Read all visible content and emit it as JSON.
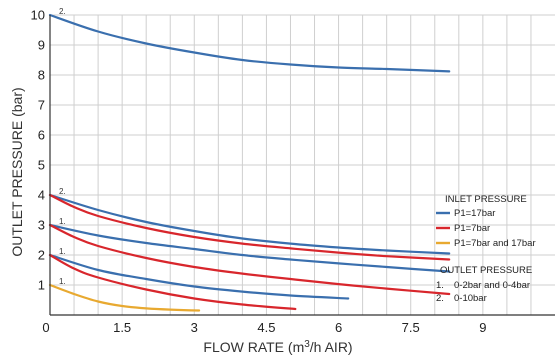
{
  "chart_data": {
    "type": "line",
    "xlabel": "FLOW RATE (m3/h AIR)",
    "xlabel_main": "FLOW RATE (m",
    "xlabel_sup": "3",
    "xlabel_end": "/h AIR)",
    "ylabel": "OUTLET PRESSURE (bar)",
    "xlim": [
      0,
      10.5
    ],
    "ylim": [
      0,
      10
    ],
    "x_ticks": [
      {
        "value": 1.5,
        "label": "1.5"
      },
      {
        "value": 3,
        "label": "3"
      },
      {
        "value": 4.5,
        "label": "4.5"
      },
      {
        "value": 6,
        "label": "6"
      },
      {
        "value": 7.5,
        "label": "7.5"
      },
      {
        "value": 9,
        "label": "9"
      }
    ],
    "x_origin_label": "0",
    "y_ticks": [
      {
        "value": 1,
        "label": "1"
      },
      {
        "value": 2,
        "label": "2"
      },
      {
        "value": 3,
        "label": "3"
      },
      {
        "value": 4,
        "label": "4"
      },
      {
        "value": 5,
        "label": "5"
      },
      {
        "value": 6,
        "label": "6"
      },
      {
        "value": 7,
        "label": "7"
      },
      {
        "value": 8,
        "label": "8"
      },
      {
        "value": 9,
        "label": "9"
      },
      {
        "value": 10,
        "label": "10"
      }
    ],
    "grid": true,
    "legend": {
      "placement": "right",
      "inlet_title": "INLET PRESSURE",
      "inlet_items": [
        {
          "label": "P1=17bar",
          "color": "#3a6fae"
        },
        {
          "label": "P1=7bar",
          "color": "#d8262c"
        },
        {
          "label": "P1=7bar and 17bar",
          "color": "#e8a930"
        }
      ],
      "outlet_title": "OUTLET PRESSURE",
      "outlet_items": [
        {
          "num": "1.",
          "label": "0-2bar and 0-4bar"
        },
        {
          "num": "2.",
          "label": "0-10bar"
        }
      ]
    },
    "series": [
      {
        "group": "P1=17bar",
        "color": "#3a6fae",
        "curve_label": "2.",
        "x": [
          0,
          1,
          2,
          3,
          4,
          5,
          6,
          7,
          8.3
        ],
        "y": [
          10.0,
          9.45,
          9.05,
          8.75,
          8.5,
          8.35,
          8.25,
          8.2,
          8.12
        ]
      },
      {
        "group": "P1=17bar",
        "color": "#3a6fae",
        "curve_label": "",
        "x": [
          0,
          1,
          2,
          3,
          4,
          5,
          6,
          7,
          8.3
        ],
        "y": [
          4.0,
          3.5,
          3.1,
          2.8,
          2.55,
          2.38,
          2.25,
          2.15,
          2.05
        ]
      },
      {
        "group": "P1=17bar",
        "color": "#3a6fae",
        "curve_label": "",
        "x": [
          0,
          1,
          2,
          3,
          4,
          5,
          6,
          7,
          8.3
        ],
        "y": [
          3.0,
          2.65,
          2.4,
          2.2,
          2.0,
          1.85,
          1.72,
          1.6,
          1.45
        ]
      },
      {
        "group": "P1=17bar",
        "color": "#3a6fae",
        "curve_label": "",
        "x": [
          0,
          1,
          2,
          3,
          4,
          5,
          6.2
        ],
        "y": [
          2.0,
          1.5,
          1.2,
          0.95,
          0.78,
          0.65,
          0.55
        ]
      },
      {
        "group": "P1=7bar",
        "color": "#d8262c",
        "curve_label": "2.",
        "x": [
          0,
          0.5,
          1,
          2,
          3,
          4,
          5,
          6,
          7,
          8.3
        ],
        "y": [
          4.0,
          3.6,
          3.3,
          2.9,
          2.6,
          2.38,
          2.22,
          2.08,
          1.96,
          1.85
        ]
      },
      {
        "group": "P1=7bar",
        "color": "#d8262c",
        "curve_label": "1.",
        "x": [
          0,
          0.5,
          1,
          2,
          3,
          4,
          5,
          6,
          7,
          8.3
        ],
        "y": [
          3.0,
          2.6,
          2.3,
          1.9,
          1.6,
          1.38,
          1.2,
          1.03,
          0.88,
          0.7
        ]
      },
      {
        "group": "P1=7bar",
        "color": "#d8262c",
        "curve_label": "1.",
        "x": [
          0,
          0.5,
          1,
          2,
          3,
          4,
          5.1
        ],
        "y": [
          2.0,
          1.55,
          1.25,
          0.85,
          0.55,
          0.35,
          0.2
        ]
      },
      {
        "group": "P1=7bar and 17bar",
        "color": "#e8a930",
        "curve_label": "1.",
        "x": [
          0,
          0.5,
          1,
          1.5,
          2,
          2.5,
          3.1
        ],
        "y": [
          1.0,
          0.7,
          0.45,
          0.3,
          0.22,
          0.18,
          0.15
        ]
      }
    ]
  }
}
